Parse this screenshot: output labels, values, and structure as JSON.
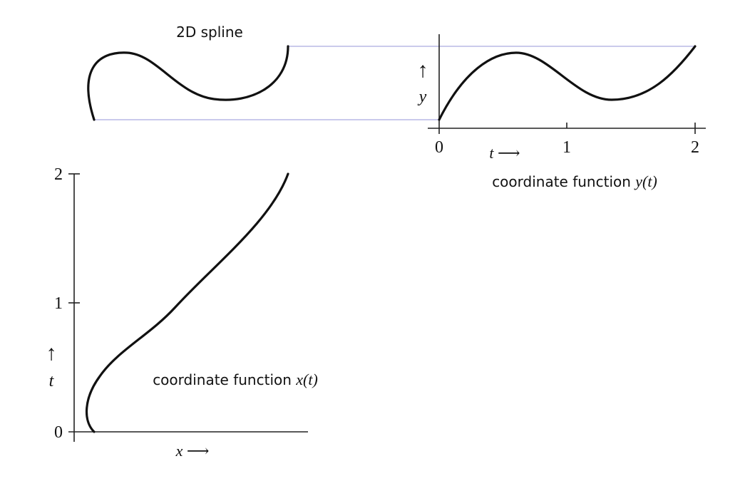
{
  "spline": {
    "title": "2D spline"
  },
  "y_panel": {
    "caption_text": "coordinate function ",
    "caption_func": "y(t)",
    "axis_var": "y",
    "up_arrow": "↑",
    "t_label": "t ⟶",
    "ticks": [
      "0",
      "1",
      "2"
    ]
  },
  "x_panel": {
    "caption_text": "coordinate function ",
    "caption_func": "x(t)",
    "axis_var": "t",
    "up_arrow": "↑",
    "x_label": "x ⟶",
    "ticks": [
      "0",
      "1",
      "2"
    ]
  },
  "colors": {
    "curve": "#111111",
    "guide": "#b8b8e6",
    "axis": "#222222"
  }
}
